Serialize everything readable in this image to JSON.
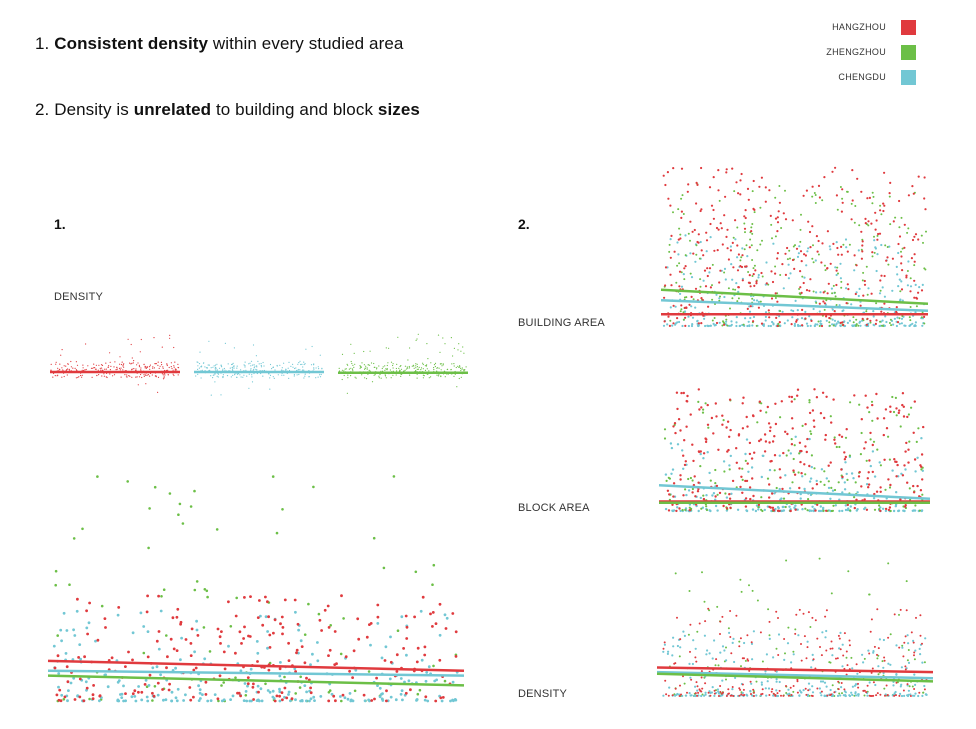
{
  "headings": {
    "h1": {
      "prefix": "1. ",
      "bold": "Consistent density",
      "suffix": " within every studied area"
    },
    "h2": {
      "prefix": "2. Density is ",
      "bold1": "unrelated",
      "middle": " to building and block ",
      "bold2": "sizes"
    }
  },
  "legend": [
    {
      "name": "HANGZHOU",
      "color": "#e03a3e"
    },
    {
      "name": "ZHENGZHOU",
      "color": "#6cbf47"
    },
    {
      "name": "CHENGDU",
      "color": "#72c7d4"
    }
  ],
  "panel1": {
    "number": "1.",
    "label": "DENSITY"
  },
  "panel2": {
    "number": "2.",
    "labels": {
      "building": "BUILDING AREA",
      "block": "BLOCK AREA",
      "density": "DENSITY"
    }
  },
  "chart_data": [
    {
      "id": "density-strips",
      "type": "scatter",
      "ylabel": "DENSITY",
      "series": [
        {
          "name": "HANGZHOU",
          "color": "#e03a3e",
          "trend": [
            0.35,
            0.35
          ]
        },
        {
          "name": "CHENGDU",
          "color": "#72c7d4",
          "trend": [
            0.35,
            0.35
          ]
        },
        {
          "name": "ZHENGZHOU",
          "color": "#6cbf47",
          "trend": [
            0.33,
            0.33
          ]
        }
      ]
    },
    {
      "id": "density-combined",
      "type": "scatter",
      "ylabel": "DENSITY",
      "series": [
        {
          "name": "HANGZHOU",
          "color": "#e03a3e",
          "trend": [
            0.18,
            0.14
          ]
        },
        {
          "name": "CHENGDU",
          "color": "#72c7d4",
          "trend": [
            0.14,
            0.12
          ]
        },
        {
          "name": "ZHENGZHOU",
          "color": "#6cbf47",
          "trend": [
            0.12,
            0.08
          ]
        }
      ]
    },
    {
      "id": "building-area",
      "type": "scatter",
      "ylabel": "BUILDING AREA",
      "series": [
        {
          "name": "HANGZHOU",
          "color": "#e03a3e",
          "trend": [
            0.09,
            0.09
          ]
        },
        {
          "name": "CHENGDU",
          "color": "#72c7d4",
          "trend": [
            0.17,
            0.11
          ]
        },
        {
          "name": "ZHENGZHOU",
          "color": "#6cbf47",
          "trend": [
            0.23,
            0.15
          ]
        }
      ]
    },
    {
      "id": "block-area",
      "type": "scatter",
      "ylabel": "BLOCK AREA",
      "series": [
        {
          "name": "HANGZHOU",
          "color": "#e03a3e",
          "trend": [
            0.1,
            0.1
          ]
        },
        {
          "name": "CHENGDU",
          "color": "#72c7d4",
          "trend": [
            0.22,
            0.12
          ]
        },
        {
          "name": "ZHENGZHOU",
          "color": "#6cbf47",
          "trend": [
            0.09,
            0.09
          ]
        }
      ]
    },
    {
      "id": "density-vs-size",
      "type": "scatter",
      "ylabel": "DENSITY",
      "series": [
        {
          "name": "HANGZHOU",
          "color": "#e03a3e",
          "trend": [
            0.21,
            0.18
          ]
        },
        {
          "name": "CHENGDU",
          "color": "#72c7d4",
          "trend": [
            0.18,
            0.14
          ]
        },
        {
          "name": "ZHENGZHOU",
          "color": "#6cbf47",
          "trend": [
            0.17,
            0.12
          ]
        }
      ]
    }
  ]
}
